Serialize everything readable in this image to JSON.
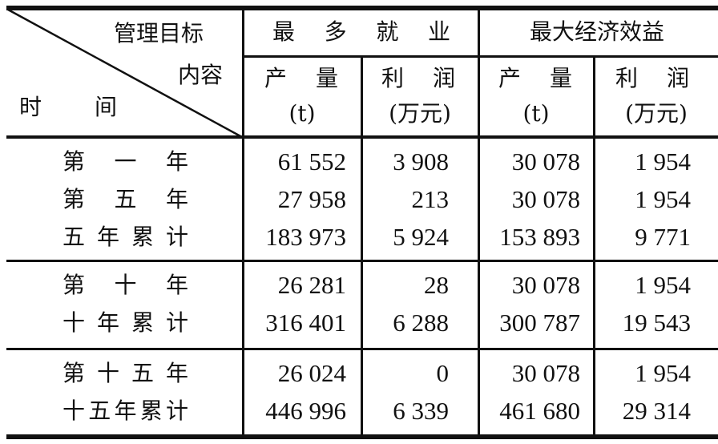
{
  "header": {
    "corner_top": "管理目标",
    "corner_mid": "内容",
    "corner_bottom_left": "时",
    "corner_bottom_right": "间",
    "groups": [
      {
        "label": "最多就业",
        "columns": [
          {
            "name": "产量",
            "unit": "(t)"
          },
          {
            "name": "利润",
            "unit": "(万元)"
          }
        ]
      },
      {
        "label": "最大经济效益",
        "columns": [
          {
            "name": "产量",
            "unit": "(t)"
          },
          {
            "name": "利润",
            "unit": "(万元)"
          }
        ]
      }
    ]
  },
  "row_groups": [
    {
      "rows": [
        {
          "label": "第一年",
          "values": [
            "61 552",
            "3 908",
            "30 078",
            "1 954"
          ]
        },
        {
          "label": "第五年",
          "values": [
            "27 958",
            "213",
            "30 078",
            "1 954"
          ]
        },
        {
          "label": "五年累计",
          "values": [
            "183 973",
            "5 924",
            "153 893",
            "9 771"
          ]
        }
      ]
    },
    {
      "rows": [
        {
          "label": "第十年",
          "values": [
            "26 281",
            "28",
            "30 078",
            "1 954"
          ]
        },
        {
          "label": "十年累计",
          "values": [
            "316 401",
            "6 288",
            "300 787",
            "19 543"
          ]
        }
      ]
    },
    {
      "rows": [
        {
          "label": "第十五年",
          "values": [
            "26 024",
            "0",
            "30 078",
            "1 954"
          ]
        },
        {
          "label": "十五年累计",
          "values": [
            "446 996",
            "6 339",
            "461 680",
            "29 314"
          ]
        }
      ]
    }
  ]
}
